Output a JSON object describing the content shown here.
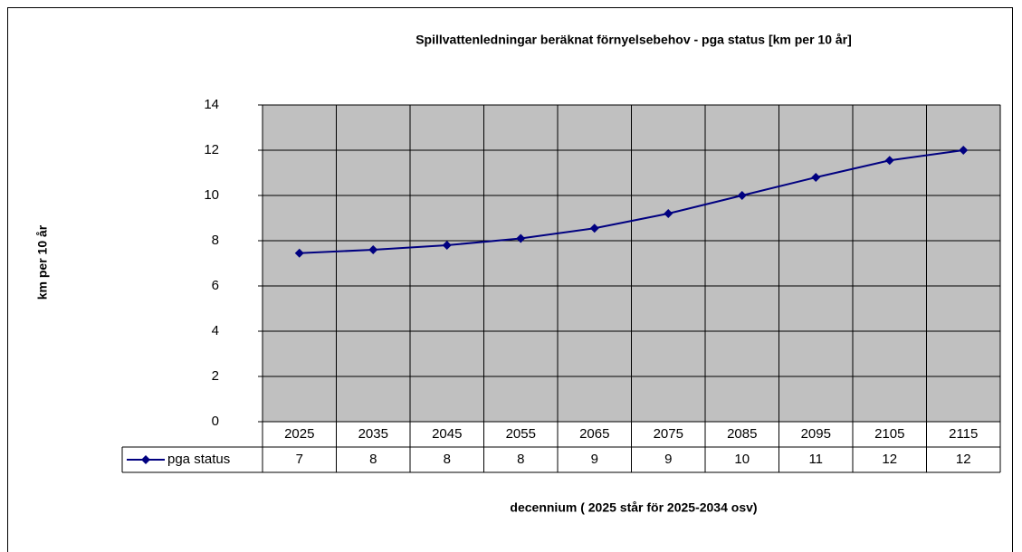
{
  "chart_data": {
    "type": "line",
    "title": "Spillvattenledningar beräknat förnyelsebehov - pga status [km per 10 år]",
    "y_label": "km per 10 år",
    "x_label": "decennium ( 2025 står för 2025-2034 osv)",
    "categories": [
      "2025",
      "2035",
      "2045",
      "2055",
      "2065",
      "2075",
      "2085",
      "2095",
      "2105",
      "2115"
    ],
    "series": [
      {
        "name": "pga status",
        "color": "#000080",
        "values": [
          7.45,
          7.6,
          7.8,
          8.1,
          8.55,
          9.2,
          10.0,
          10.8,
          11.55,
          12.0
        ],
        "value_labels": [
          "7",
          "8",
          "8",
          "8",
          "9",
          "9",
          "10",
          "11",
          "12",
          "12"
        ]
      }
    ],
    "ylim": [
      0,
      14
    ],
    "yticks": [
      0,
      2,
      4,
      6,
      8,
      10,
      12,
      14
    ],
    "grid": true,
    "plot_bg": "#c0c0c0"
  }
}
